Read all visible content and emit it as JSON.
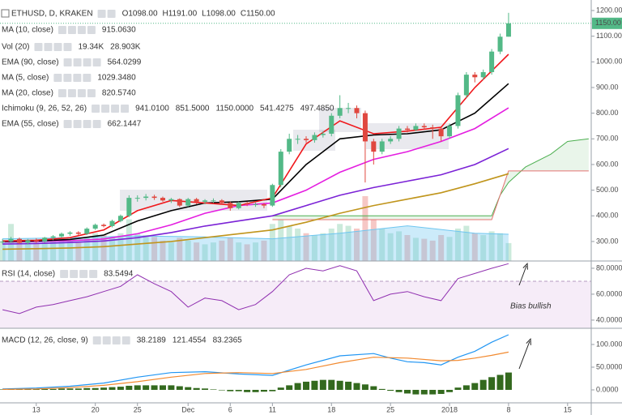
{
  "header": {
    "title": "ETHUSD, D, KRAKEN",
    "ohlc": [
      "O1098.00",
      "H1191.00",
      "L1098.00",
      "C1150.00"
    ]
  },
  "chart_data": [
    {
      "type": "candlestick",
      "xlim": [
        -4.3,
        65.8
      ],
      "ylim": [
        224,
        1241
      ],
      "yticks": [
        {
          "value": 1200,
          "label": "1200.00"
        },
        {
          "value": 1100,
          "label": "1100.00"
        },
        {
          "value": 1000,
          "label": "1000.00"
        },
        {
          "value": 900,
          "label": "900.00"
        },
        {
          "value": 800,
          "label": "800.00"
        },
        {
          "value": 700,
          "label": "700.00"
        },
        {
          "value": 600,
          "label": "600.00"
        },
        {
          "value": 500,
          "label": "500.00"
        },
        {
          "value": 400,
          "label": "400.00"
        },
        {
          "value": 300,
          "label": "300.00"
        }
      ],
      "last_price": {
        "value": 1150,
        "label": "1150.00"
      },
      "up_color": "#53b987",
      "down_color": "#e0473f",
      "x": [
        -4,
        -3,
        -2,
        -1,
        0,
        1,
        2,
        3,
        4,
        5,
        6,
        7,
        8,
        9,
        10,
        11,
        12,
        13,
        14,
        15,
        16,
        17,
        18,
        19,
        20,
        21,
        22,
        23,
        24,
        25,
        26,
        27,
        28,
        29,
        30,
        31,
        32,
        33,
        34,
        35,
        36,
        37,
        38,
        39,
        40,
        41,
        42,
        43,
        44,
        45,
        46,
        47,
        48,
        49,
        50,
        51,
        52,
        53,
        54,
        55,
        56
      ],
      "open": [
        298,
        300,
        310,
        295,
        305,
        300,
        315,
        320,
        330,
        335,
        330,
        350,
        365,
        360,
        380,
        400,
        470,
        470,
        475,
        470,
        460,
        465,
        440,
        465,
        455,
        460,
        460,
        450,
        430,
        450,
        445,
        445,
        440,
        520,
        650,
        700,
        700,
        695,
        715,
        720,
        790,
        820,
        820,
        800,
        690,
        650,
        690,
        700,
        740,
        735,
        750,
        745,
        740,
        710,
        750,
        870,
        950,
        940,
        960,
        1040,
        1098
      ],
      "high": [
        310,
        318,
        315,
        310,
        312,
        318,
        325,
        335,
        340,
        340,
        355,
        370,
        370,
        385,
        405,
        480,
        480,
        485,
        482,
        475,
        470,
        468,
        470,
        470,
        465,
        468,
        465,
        455,
        455,
        455,
        452,
        450,
        525,
        660,
        720,
        715,
        710,
        725,
        730,
        800,
        870,
        840,
        830,
        810,
        700,
        700,
        710,
        750,
        750,
        760,
        760,
        755,
        745,
        760,
        880,
        960,
        960,
        970,
        1050,
        1110,
        1191
      ],
      "low": [
        290,
        295,
        290,
        288,
        295,
        295,
        305,
        315,
        322,
        325,
        325,
        345,
        355,
        355,
        375,
        395,
        455,
        460,
        462,
        455,
        450,
        435,
        435,
        445,
        445,
        450,
        445,
        420,
        425,
        438,
        435,
        430,
        435,
        510,
        640,
        680,
        685,
        685,
        705,
        710,
        780,
        800,
        780,
        530,
        600,
        640,
        680,
        690,
        725,
        730,
        735,
        700,
        690,
        700,
        740,
        860,
        920,
        930,
        950,
        1030,
        1098
      ],
      "close": [
        300,
        310,
        295,
        305,
        300,
        315,
        320,
        330,
        335,
        330,
        350,
        365,
        360,
        380,
        400,
        470,
        470,
        475,
        470,
        460,
        465,
        440,
        465,
        455,
        460,
        460,
        450,
        430,
        450,
        445,
        445,
        440,
        520,
        650,
        700,
        700,
        695,
        715,
        720,
        790,
        820,
        820,
        800,
        690,
        650,
        690,
        700,
        740,
        735,
        750,
        745,
        740,
        710,
        750,
        870,
        950,
        940,
        960,
        1040,
        1098,
        1150
      ],
      "volume": {
        "name": "Vol (20)",
        "values": [
          20,
          40,
          22,
          18,
          20,
          22,
          24,
          26,
          22,
          20,
          25,
          30,
          28,
          26,
          30,
          45,
          30,
          28,
          26,
          22,
          20,
          25,
          22,
          20,
          18,
          20,
          22,
          25,
          20,
          18,
          20,
          22,
          40,
          45,
          38,
          35,
          30,
          28,
          30,
          35,
          40,
          38,
          35,
          70,
          45,
          35,
          30,
          32,
          28,
          25,
          24,
          22,
          28,
          26,
          35,
          38,
          30,
          28,
          32,
          30,
          19.34
        ],
        "legend_values": [
          {
            "value": 19.34,
            "label": "19.34K"
          },
          {
            "value": 28.903,
            "label": "28.903K"
          }
        ],
        "ma": {
          "color": "#6ec6f0",
          "x": [
            -4,
            4,
            12,
            20,
            28,
            36,
            44,
            52,
            56
          ],
          "values": [
            24,
            25,
            27,
            26,
            24,
            30,
            38,
            30,
            28.903
          ]
        }
      },
      "series": [
        {
          "name": "MA (10, close)",
          "color": "#000000",
          "x": [
            -4,
            0,
            4,
            8,
            12,
            16,
            20,
            24,
            28,
            32,
            36,
            40,
            44,
            48,
            52,
            56
          ],
          "values": [
            300,
            302,
            308,
            325,
            380,
            420,
            450,
            455,
            465,
            600,
            700,
            715,
            720,
            735,
            800,
            915.063
          ],
          "legend_value": {
            "value": 915.063,
            "label": "915.0630"
          }
        },
        {
          "name": "MA (5, close)",
          "color": "#f0171b",
          "x": [
            -4,
            0,
            4,
            8,
            12,
            16,
            20,
            24,
            28,
            32,
            36,
            40,
            44,
            48,
            52,
            56
          ],
          "values": [
            302,
            305,
            315,
            345,
            420,
            460,
            450,
            440,
            470,
            680,
            770,
            720,
            730,
            745,
            900,
            1029.348
          ],
          "legend_value": {
            "value": 1029.348,
            "label": "1029.3480"
          }
        },
        {
          "name": "MA (20, close)",
          "color": "#e41ee0",
          "x": [
            -4,
            0,
            4,
            8,
            12,
            16,
            20,
            24,
            28,
            32,
            36,
            40,
            44,
            48,
            52,
            56
          ],
          "values": [
            298,
            300,
            303,
            310,
            330,
            365,
            410,
            440,
            450,
            500,
            570,
            620,
            650,
            690,
            740,
            820.574
          ],
          "legend_value": {
            "value": 820.574,
            "label": "820.5740"
          }
        },
        {
          "name": "EMA (55, close)",
          "color": "#7b22d6",
          "x": [
            -4,
            0,
            4,
            8,
            12,
            16,
            20,
            24,
            28,
            32,
            36,
            40,
            44,
            48,
            52,
            56
          ],
          "values": [
            290,
            292,
            296,
            302,
            315,
            335,
            360,
            380,
            400,
            440,
            480,
            510,
            535,
            560,
            600,
            662.1447
          ],
          "legend_value": 662.1447
        },
        {
          "name": "EMA (90, close)",
          "color": "#c0951c",
          "x": [
            -4,
            0,
            4,
            8,
            12,
            16,
            20,
            24,
            28,
            32,
            36,
            40,
            44,
            48,
            52,
            56
          ],
          "values": [
            270,
            272,
            275,
            280,
            290,
            300,
            315,
            330,
            345,
            375,
            410,
            440,
            465,
            490,
            525,
            564.0299
          ],
          "legend_value": 564.0299
        }
      ],
      "ichimoku": {
        "name": "Ichimoku (9, 26, 52, 26)",
        "legend_values": [
          {
            "value": 941.01,
            "label": "941.0100"
          },
          {
            "value": 851.5,
            "label": "851.5000"
          },
          {
            "value": 1150,
            "label": "1150.0000"
          },
          541.4275,
          {
            "value": 497.485,
            "label": "497.4850"
          }
        ],
        "span_a": {
          "color": "#4caf50",
          "x": [
            28,
            34,
            40,
            46,
            52,
            54,
            55,
            56,
            58,
            61,
            63,
            65.5
          ],
          "values": [
            400,
            400,
            400,
            400,
            400,
            400,
            480,
            530,
            590,
            640,
            690,
            700
          ]
        },
        "span_b": {
          "color": "#e57373",
          "x": [
            28,
            34,
            40,
            46,
            52,
            54,
            55,
            56,
            58,
            61,
            63,
            65.5
          ],
          "values": [
            385,
            385,
            385,
            385,
            385,
            385,
            480,
            575,
            575,
            575,
            575,
            575
          ]
        }
      }
    },
    {
      "type": "line",
      "name": "RSI (14, close)",
      "legend_value": 83.5494,
      "xlim": [
        -4.3,
        65.8
      ],
      "ylim": [
        33.7,
        85.6
      ],
      "yticks": [
        {
          "value": 80,
          "label": "80.0000"
        },
        {
          "value": 60,
          "label": "60.0000"
        },
        {
          "value": 40,
          "label": "40.0000"
        }
      ],
      "band": [
        30,
        70
      ],
      "color": "#9030b0",
      "x": [
        -4,
        -2,
        0,
        2,
        4,
        6,
        8,
        10,
        12,
        14,
        16,
        18,
        20,
        22,
        24,
        26,
        28,
        30,
        32,
        34,
        36,
        38,
        40,
        42,
        44,
        46,
        48,
        50,
        52,
        54,
        56
      ],
      "values": [
        48,
        45,
        50,
        52,
        55,
        58,
        62,
        66,
        75,
        68,
        62,
        50,
        57,
        55,
        48,
        52,
        62,
        75,
        80,
        78,
        82,
        78,
        55,
        60,
        62,
        58,
        55,
        72,
        76,
        80,
        83.5494
      ],
      "annotation": "Bias bullish"
    },
    {
      "type": "macd",
      "name": "MACD (12, 26, close, 9)",
      "xlim": [
        -4.3,
        65.8
      ],
      "ylim": [
        -28.6,
        135.7
      ],
      "yticks": [
        {
          "value": 100,
          "label": "100.0000"
        },
        {
          "value": 50,
          "label": "50.0000"
        },
        {
          "value": 0,
          "label": "0.0000"
        }
      ],
      "xticks": [
        {
          "value": 0,
          "label": "13"
        },
        {
          "value": 7,
          "label": "20"
        },
        {
          "value": 12,
          "label": "25"
        },
        {
          "value": 18,
          "label": "Dec"
        },
        {
          "value": 23,
          "label": "6"
        },
        {
          "value": 28,
          "label": "11"
        },
        {
          "value": 35,
          "label": "18"
        },
        {
          "value": 42,
          "label": "25"
        },
        {
          "value": 49,
          "label": "2018"
        },
        {
          "value": 56,
          "label": "8"
        },
        {
          "value": 63,
          "label": "15"
        }
      ],
      "series": [
        {
          "type": "bar",
          "color": "#33691e",
          "legend_value": 38.2189,
          "x": [
            -4,
            -3,
            -2,
            -1,
            0,
            1,
            2,
            3,
            4,
            5,
            6,
            7,
            8,
            9,
            10,
            11,
            12,
            13,
            14,
            15,
            16,
            17,
            18,
            19,
            20,
            21,
            22,
            23,
            24,
            25,
            26,
            27,
            28,
            29,
            30,
            31,
            32,
            33,
            34,
            35,
            36,
            37,
            38,
            39,
            40,
            41,
            42,
            43,
            44,
            45,
            46,
            47,
            48,
            49,
            50,
            51,
            52,
            53,
            54,
            55,
            56
          ],
          "values": [
            1,
            1,
            1,
            1,
            2,
            2,
            2,
            3,
            3,
            3,
            4,
            4,
            5,
            6,
            7,
            9,
            10,
            10,
            10,
            10,
            10,
            8,
            6,
            4,
            3,
            1,
            -1,
            -3,
            -3,
            -5,
            -5,
            -4,
            -3,
            5,
            10,
            15,
            18,
            20,
            22,
            22,
            20,
            18,
            15,
            12,
            8,
            2,
            -2,
            -5,
            -8,
            -10,
            -10,
            -10,
            -9,
            -5,
            5,
            10,
            15,
            22,
            28,
            33,
            38.2189
          ]
        },
        {
          "type": "line",
          "color": "#2196f3",
          "legend_value": 121.4554,
          "x": [
            -4,
            0,
            4,
            8,
            12,
            16,
            20,
            24,
            28,
            32,
            36,
            40,
            42,
            44,
            46,
            48,
            50,
            52,
            54,
            56
          ],
          "values": [
            2,
            4,
            8,
            15,
            28,
            38,
            40,
            35,
            32,
            55,
            75,
            80,
            70,
            62,
            60,
            55,
            72,
            85,
            105,
            121.4554
          ]
        },
        {
          "type": "line",
          "color": "#f28a30",
          "legend_value": 83.2365,
          "x": [
            -4,
            0,
            4,
            8,
            12,
            16,
            20,
            24,
            28,
            32,
            36,
            40,
            44,
            48,
            50,
            52,
            54,
            56
          ],
          "values": [
            1,
            2,
            5,
            10,
            18,
            28,
            36,
            38,
            36,
            45,
            60,
            72,
            70,
            64,
            65,
            70,
            76,
            83.2365
          ]
        }
      ]
    }
  ]
}
